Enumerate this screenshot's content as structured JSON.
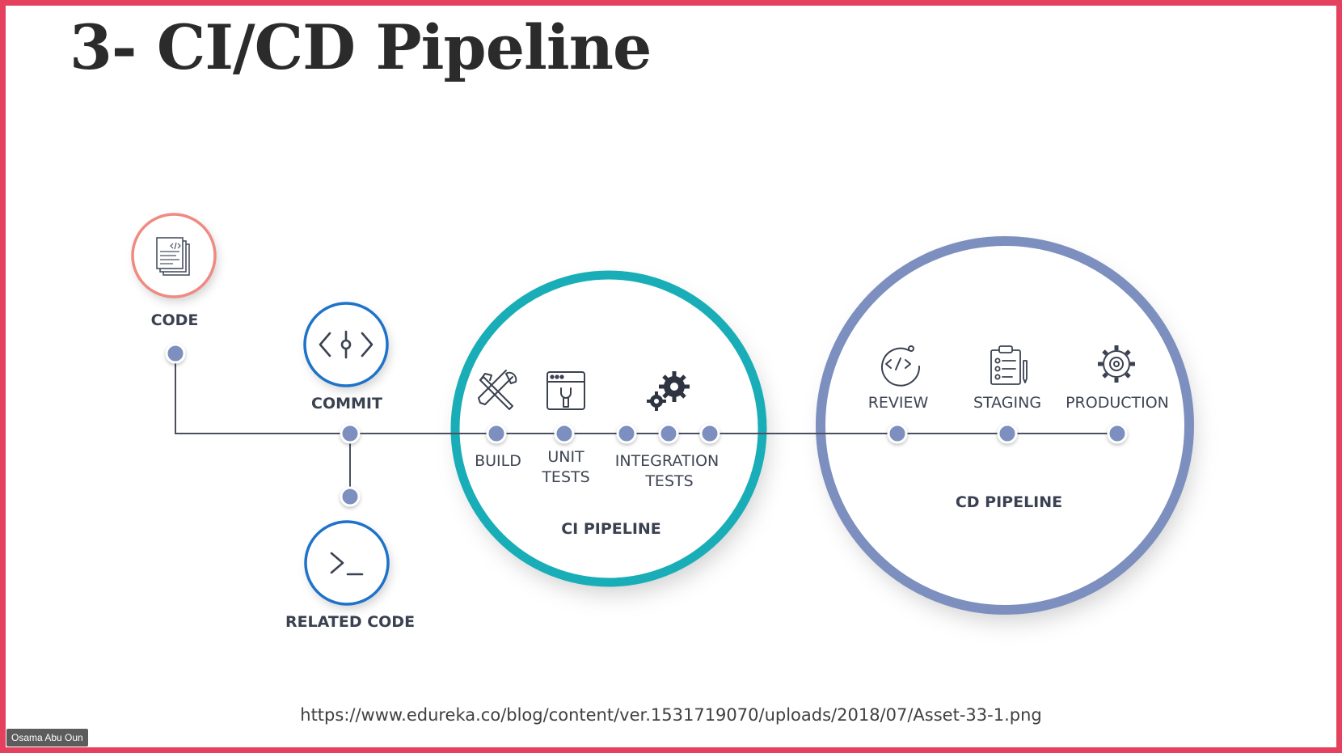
{
  "slide": {
    "title": "3- CI/CD Pipeline",
    "source_url": "https://www.edureka.co/blog/content/ver.1531719070/uploads/2018/07/Asset-33-1.png"
  },
  "participant": {
    "name": "Osama Abu Oun"
  },
  "diagram": {
    "nodes": {
      "code": "CODE",
      "commit": "COMMIT",
      "related_code": "RELATED CODE"
    },
    "ci": {
      "title": "CI PIPELINE",
      "build": "BUILD",
      "unit_line1": "UNIT",
      "unit_line2": "TESTS",
      "integration_line1": "INTEGRATION",
      "integration_line2": "TESTS"
    },
    "cd": {
      "title": "CD PIPELINE",
      "review": "REVIEW",
      "staging": "STAGING",
      "production": "PRODUCTION"
    },
    "icons": [
      "code-document-icon",
      "commit-icon",
      "terminal-icon",
      "tools-icon",
      "browser-wrench-icon",
      "gears-icon",
      "code-review-icon",
      "clipboard-checklist-icon",
      "gear-icon"
    ],
    "colors": {
      "code_ring": "#ef8a80",
      "commit_ring": "#1e72c9",
      "ci_ring": "#19aeb7",
      "cd_ring": "#7c8fbe",
      "dot": "#7c8fbe",
      "line": "#4a5060",
      "frame": "#e5405d"
    }
  }
}
